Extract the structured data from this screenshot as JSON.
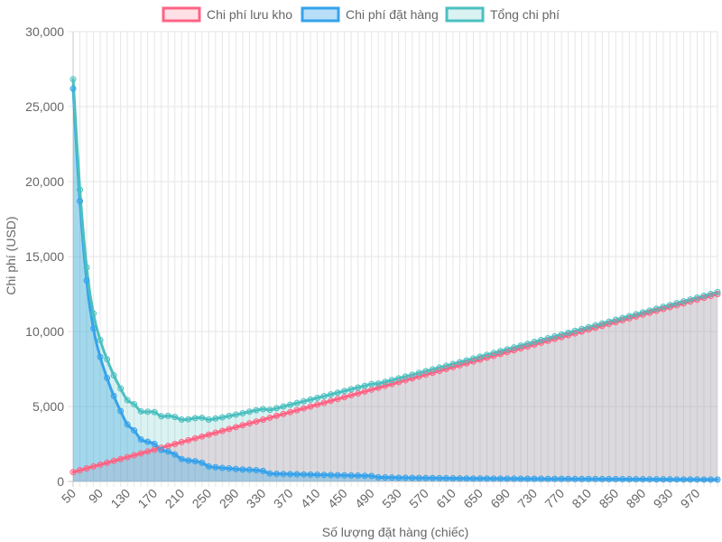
{
  "chart_data": {
    "type": "line",
    "xlabel": "Số lượng đặt hàng (chiếc)",
    "ylabel": "Chi phí (USD)",
    "ylim": [
      0,
      30000
    ],
    "y_ticks": [
      "0",
      "5,000",
      "10,000",
      "15,000",
      "20,000",
      "25,000",
      "30,000"
    ],
    "x_tick_labels": [
      "50",
      "90",
      "130",
      "170",
      "210",
      "250",
      "290",
      "330",
      "370",
      "410",
      "450",
      "490",
      "530",
      "570",
      "610",
      "650",
      "690",
      "730",
      "770",
      "810",
      "850",
      "890",
      "930",
      "970"
    ],
    "x": [
      50,
      60,
      70,
      80,
      90,
      100,
      110,
      120,
      130,
      140,
      150,
      160,
      170,
      180,
      190,
      200,
      210,
      220,
      230,
      240,
      250,
      260,
      270,
      280,
      290,
      300,
      310,
      320,
      330,
      340,
      350,
      360,
      370,
      380,
      390,
      400,
      410,
      420,
      430,
      440,
      450,
      460,
      470,
      480,
      490,
      500,
      510,
      520,
      530,
      540,
      550,
      560,
      570,
      580,
      590,
      600,
      610,
      620,
      630,
      640,
      650,
      660,
      670,
      680,
      690,
      700,
      710,
      720,
      730,
      740,
      750,
      760,
      770,
      780,
      790,
      800,
      810,
      820,
      830,
      840,
      850,
      860,
      870,
      880,
      890,
      900,
      910,
      920,
      930,
      940,
      950,
      960,
      970,
      980,
      990,
      1000
    ],
    "series": [
      {
        "name": "Chi phí lưu kho",
        "values": [
          625,
          750,
          875,
          1000,
          1125,
          1250,
          1375,
          1500,
          1625,
          1750,
          1875,
          2000,
          2125,
          2250,
          2375,
          2500,
          2625,
          2750,
          2875,
          3000,
          3125,
          3250,
          3375,
          3500,
          3625,
          3750,
          3875,
          4000,
          4125,
          4250,
          4375,
          4500,
          4625,
          4750,
          4875,
          5000,
          5125,
          5250,
          5375,
          5500,
          5625,
          5750,
          5875,
          6000,
          6125,
          6250,
          6375,
          6500,
          6625,
          6750,
          6875,
          7000,
          7125,
          7250,
          7375,
          7500,
          7625,
          7750,
          7875,
          8000,
          8125,
          8250,
          8375,
          8500,
          8625,
          8750,
          8875,
          9000,
          9125,
          9250,
          9375,
          9500,
          9625,
          9750,
          9875,
          10000,
          10125,
          10250,
          10375,
          10500,
          10625,
          10750,
          10875,
          11000,
          11125,
          11250,
          11375,
          11500,
          11625,
          11750,
          11875,
          12000,
          12125,
          12250,
          12375,
          12500
        ]
      },
      {
        "name": "Chi phí đặt hàng",
        "values": [
          26200,
          18700,
          13400,
          10200,
          8300,
          6900,
          5700,
          4700,
          3800,
          3400,
          2800,
          2650,
          2500,
          2100,
          2000,
          1800,
          1500,
          1400,
          1350,
          1250,
          1000,
          950,
          900,
          870,
          830,
          800,
          780,
          750,
          700,
          530,
          510,
          500,
          490,
          480,
          470,
          460,
          450,
          440,
          430,
          420,
          410,
          400,
          390,
          380,
          370,
          280,
          270,
          260,
          250,
          245,
          240,
          235,
          230,
          225,
          220,
          215,
          210,
          205,
          200,
          198,
          196,
          194,
          192,
          190,
          188,
          186,
          184,
          182,
          180,
          178,
          176,
          174,
          172,
          170,
          168,
          166,
          164,
          162,
          160,
          158,
          156,
          154,
          152,
          150,
          148,
          146,
          144,
          142,
          140,
          138,
          136,
          134,
          132,
          130,
          128,
          126
        ]
      },
      {
        "name": "Tổng chi phí",
        "values": [
          26825,
          19450,
          14275,
          11200,
          9425,
          8150,
          7075,
          6200,
          5425,
          5150,
          4675,
          4650,
          4625,
          4350,
          4375,
          4300,
          4125,
          4150,
          4225,
          4250,
          4125,
          4200,
          4275,
          4370,
          4455,
          4550,
          4655,
          4750,
          4825,
          4780,
          4885,
          5000,
          5115,
          5230,
          5345,
          5460,
          5575,
          5690,
          5805,
          5920,
          6035,
          6150,
          6265,
          6380,
          6495,
          6530,
          6645,
          6760,
          6875,
          6995,
          7115,
          7235,
          7355,
          7475,
          7595,
          7715,
          7835,
          7955,
          8075,
          8198,
          8321,
          8444,
          8567,
          8690,
          8813,
          8936,
          9059,
          9182,
          9305,
          9428,
          9551,
          9674,
          9797,
          9920,
          10043,
          10166,
          10289,
          10412,
          10535,
          10658,
          10781,
          10904,
          11027,
          11150,
          11273,
          11396,
          11519,
          11642,
          11765,
          11888,
          12011,
          12134,
          12257,
          12380,
          12503,
          12626
        ]
      }
    ],
    "colors": [
      {
        "line": "#ff6384",
        "fill": "rgba(255,99,132,0.2)"
      },
      {
        "line": "#36a2eb",
        "fill": "rgba(54,162,235,0.35)"
      },
      {
        "line": "#4bc0c0",
        "fill": "rgba(75,192,192,0.2)"
      }
    ],
    "grid": true,
    "legend": "top"
  }
}
